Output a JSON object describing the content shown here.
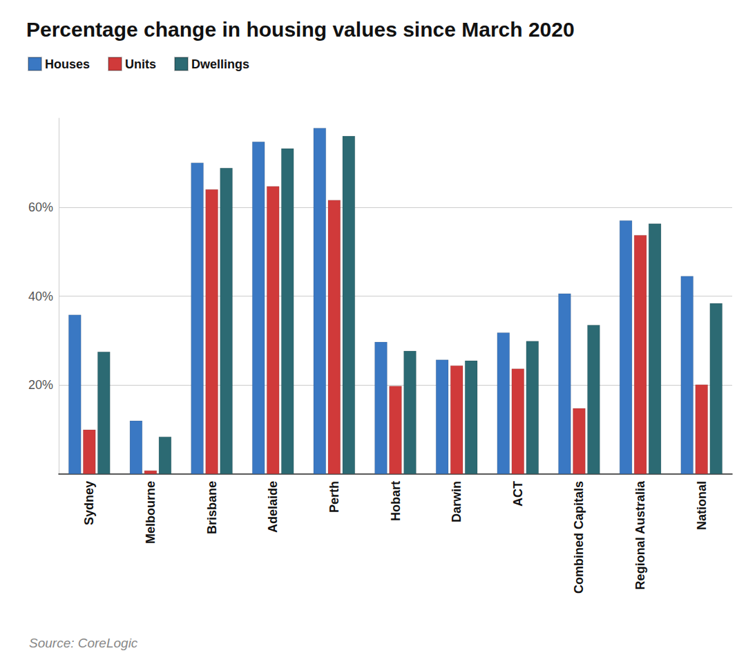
{
  "chart_data": {
    "type": "bar",
    "title": "Percentage change in housing values since March 2020",
    "source": "Source: CoreLogic",
    "categories": [
      "Sydney",
      "Melbourne",
      "Brisbane",
      "Adelaide",
      "Perth",
      "Hobart",
      "Darwin",
      "ACT",
      "Combined Capitals",
      "Regional Australia",
      "National"
    ],
    "series": [
      {
        "name": "Houses",
        "color": "#3a78c3",
        "values": [
          35.8,
          12.0,
          70.0,
          74.7,
          77.8,
          29.7,
          25.7,
          31.8,
          40.6,
          57.0,
          44.5
        ]
      },
      {
        "name": "Units",
        "color": "#d03a3a",
        "values": [
          10.0,
          0.8,
          64.0,
          64.7,
          61.6,
          19.8,
          24.4,
          23.7,
          14.8,
          53.7,
          20.1
        ]
      },
      {
        "name": "Dwellings",
        "color": "#2c6a73",
        "values": [
          27.5,
          8.4,
          68.8,
          73.2,
          76.0,
          27.7,
          25.5,
          29.9,
          33.5,
          56.3,
          38.4
        ]
      }
    ],
    "ylim": [
      0,
      80
    ],
    "yticks": [
      {
        "value": 20,
        "label": "20%"
      },
      {
        "value": 40,
        "label": "40%"
      },
      {
        "value": 60,
        "label": "60%"
      }
    ],
    "grid": true,
    "legend": "top-left"
  }
}
